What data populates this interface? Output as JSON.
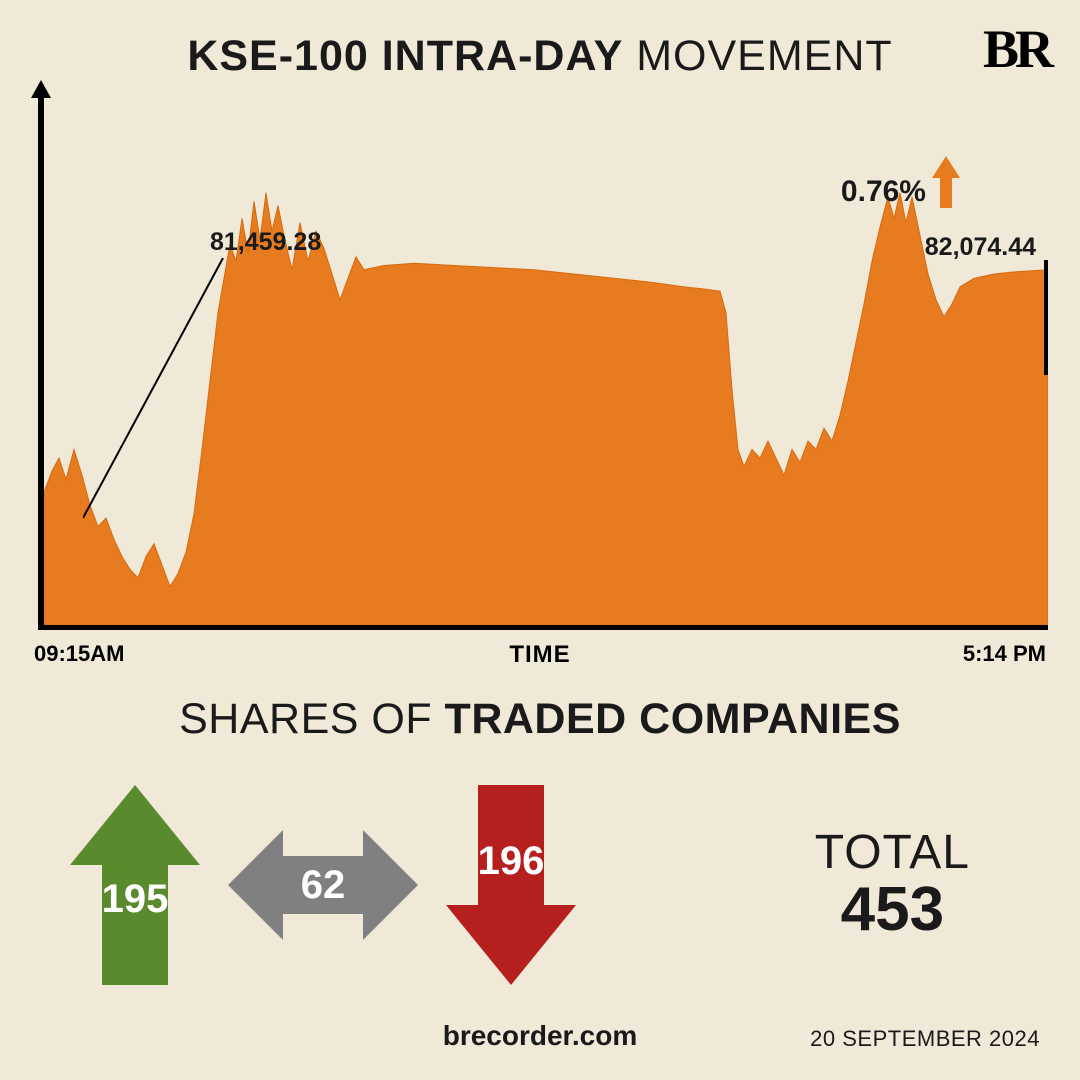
{
  "logo": "BR",
  "title": {
    "bold": "KSE-100 INTRA-DAY",
    "light": " MOVEMENT"
  },
  "chart": {
    "type": "area",
    "fill_color": "#e67c1f",
    "stroke_color": "#d76a0f",
    "background_color": "#f0e9d8",
    "axis_color": "#000000",
    "open_value": "81,459.28",
    "close_value": "82,074.44",
    "pct_change": "0.76%",
    "pct_arrow_color": "#e67c1f",
    "time_start": "09:15AM",
    "time_end": "5:14 PM",
    "time_label": "TIME",
    "y_range_top": 82400,
    "y_range_bottom": 81150,
    "points": [
      [
        0,
        81460
      ],
      [
        8,
        81510
      ],
      [
        15,
        81540
      ],
      [
        22,
        81490
      ],
      [
        30,
        81560
      ],
      [
        38,
        81500
      ],
      [
        46,
        81430
      ],
      [
        54,
        81380
      ],
      [
        62,
        81400
      ],
      [
        70,
        81350
      ],
      [
        78,
        81310
      ],
      [
        86,
        81280
      ],
      [
        94,
        81260
      ],
      [
        102,
        81310
      ],
      [
        110,
        81340
      ],
      [
        118,
        81290
      ],
      [
        126,
        81240
      ],
      [
        134,
        81270
      ],
      [
        142,
        81320
      ],
      [
        150,
        81410
      ],
      [
        158,
        81560
      ],
      [
        166,
        81720
      ],
      [
        174,
        81880
      ],
      [
        180,
        81960
      ],
      [
        186,
        82040
      ],
      [
        192,
        82000
      ],
      [
        198,
        82100
      ],
      [
        204,
        82020
      ],
      [
        210,
        82140
      ],
      [
        216,
        82050
      ],
      [
        222,
        82160
      ],
      [
        228,
        82070
      ],
      [
        234,
        82130
      ],
      [
        240,
        82060
      ],
      [
        248,
        81980
      ],
      [
        256,
        82090
      ],
      [
        264,
        82000
      ],
      [
        272,
        82070
      ],
      [
        280,
        82030
      ],
      [
        288,
        81970
      ],
      [
        296,
        81910
      ],
      [
        304,
        81960
      ],
      [
        312,
        82010
      ],
      [
        320,
        81980
      ],
      [
        340,
        81990
      ],
      [
        370,
        81995
      ],
      [
        410,
        81990
      ],
      [
        450,
        81985
      ],
      [
        490,
        81980
      ],
      [
        530,
        81970
      ],
      [
        570,
        81960
      ],
      [
        610,
        81950
      ],
      [
        640,
        81940
      ],
      [
        660,
        81935
      ],
      [
        676,
        81930
      ],
      [
        682,
        81880
      ],
      [
        688,
        81700
      ],
      [
        694,
        81560
      ],
      [
        700,
        81520
      ],
      [
        708,
        81560
      ],
      [
        716,
        81540
      ],
      [
        724,
        81580
      ],
      [
        732,
        81540
      ],
      [
        740,
        81500
      ],
      [
        748,
        81560
      ],
      [
        756,
        81530
      ],
      [
        764,
        81580
      ],
      [
        772,
        81560
      ],
      [
        780,
        81610
      ],
      [
        788,
        81580
      ],
      [
        796,
        81640
      ],
      [
        804,
        81720
      ],
      [
        812,
        81810
      ],
      [
        820,
        81900
      ],
      [
        828,
        82000
      ],
      [
        836,
        82080
      ],
      [
        844,
        82150
      ],
      [
        850,
        82100
      ],
      [
        856,
        82160
      ],
      [
        862,
        82090
      ],
      [
        868,
        82150
      ],
      [
        876,
        82060
      ],
      [
        884,
        81970
      ],
      [
        892,
        81910
      ],
      [
        900,
        81870
      ],
      [
        908,
        81900
      ],
      [
        916,
        81940
      ],
      [
        930,
        81960
      ],
      [
        950,
        81970
      ],
      [
        970,
        81975
      ],
      [
        990,
        81978
      ],
      [
        1004,
        81980
      ]
    ]
  },
  "shares_title": {
    "light": "SHARES OF ",
    "bold": "TRADED COMPANIES"
  },
  "stats": {
    "up": {
      "value": "195",
      "color": "#5a8a2e"
    },
    "neutral": {
      "value": "62",
      "color": "#808080"
    },
    "down": {
      "value": "196",
      "color": "#b5201f"
    },
    "total_label": "TOTAL",
    "total_value": "453"
  },
  "footer": {
    "url": "brecorder.com",
    "date": "20 SEPTEMBER 2024"
  }
}
